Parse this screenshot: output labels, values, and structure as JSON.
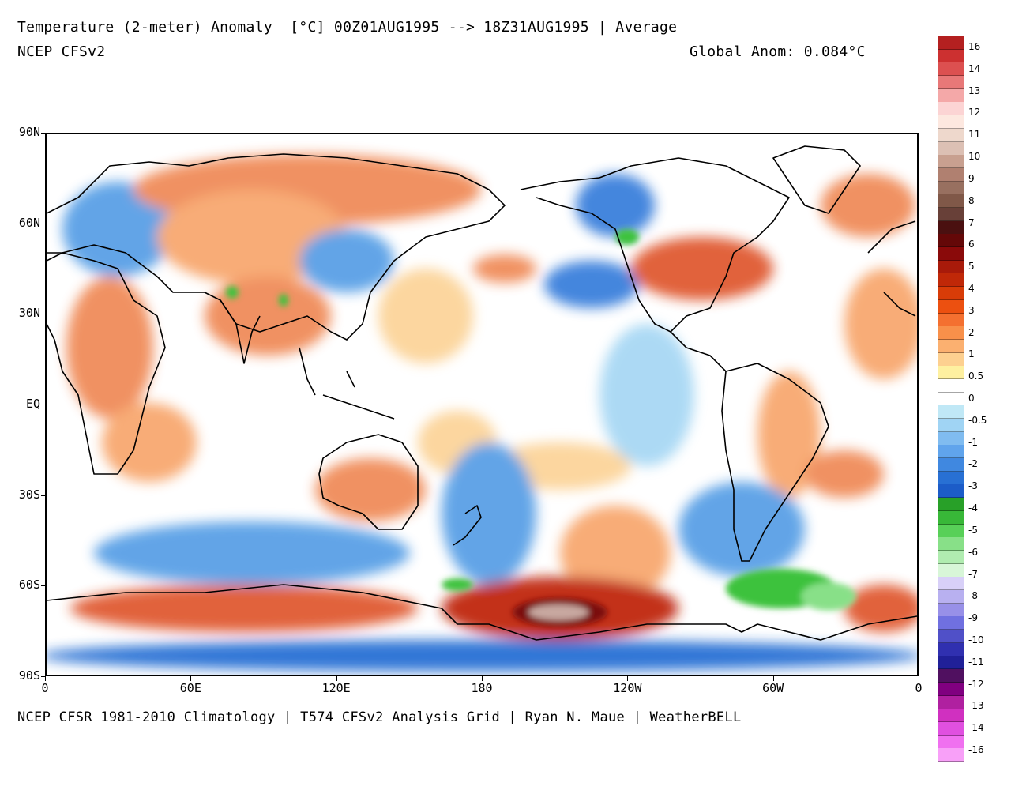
{
  "header": {
    "title": "Temperature (2-meter) Anomaly  [°C] 00Z01AUG1995 --> 18Z31AUG1995 | Average",
    "model": "NCEP CFSv2",
    "global_anom": "Global Anom: 0.084°C"
  },
  "footer": {
    "credits": "NCEP CFSR 1981-2010 Climatology | T574 CFSv2 Analysis Grid | Ryan N. Maue | WeatherBELL"
  },
  "map": {
    "lat_labels": [
      "90N",
      "60N",
      "30N",
      "EQ",
      "30S",
      "60S",
      "90S"
    ],
    "lon_labels": [
      "0",
      "60E",
      "120E",
      "180",
      "120W",
      "60W",
      "0"
    ],
    "projection": "cylindrical equidistant, 0-360 centered on 180",
    "colors": {
      "warm_strong": "#d8352a",
      "warm": "#f08c5a",
      "warm_light": "#fcd49a",
      "neutral": "#ffffff",
      "cool_light": "#b8e0f4",
      "cool": "#5aa0e6",
      "cool_strong": "#2060d0",
      "green": "#3cc23c",
      "very_warm": "#8a1010",
      "extreme_warm": "#c8a8a0"
    }
  },
  "legend": {
    "labels": [
      "16",
      "14",
      "13",
      "12",
      "11",
      "10",
      "9",
      "8",
      "7",
      "6",
      "5",
      "4",
      "3",
      "2",
      "1",
      "0.5",
      "0",
      "-0.5",
      "-1",
      "-2",
      "-3",
      "-4",
      "-5",
      "-6",
      "-7",
      "-8",
      "-9",
      "-10",
      "-11",
      "-12",
      "-13",
      "-14",
      "-16"
    ],
    "colors": [
      "#b42020",
      "#cc3030",
      "#dc5050",
      "#e87878",
      "#f4a8a8",
      "#fcd4d4",
      "#fde8e0",
      "#eed8cc",
      "#dcc0b4",
      "#c8a090",
      "#b08070",
      "#987060",
      "#805848",
      "#684038",
      "#4a1010",
      "#640808",
      "#8a0a0a",
      "#a81a0a",
      "#c02808",
      "#d83c08",
      "#ec5010",
      "#f47030",
      "#f8904a",
      "#fbb070",
      "#fdd090",
      "#fef0a0",
      "#ffffff",
      "#ffffff",
      "#c0e8f6",
      "#a0d4f4",
      "#80bcf0",
      "#60a4ec",
      "#4088e0",
      "#2870d4",
      "#1c5cc8",
      "#28a028",
      "#38b838",
      "#58d058",
      "#88e088",
      "#b0ecb0",
      "#d8f6d8",
      "#d8d0f8",
      "#b8b0f0",
      "#9890e8",
      "#7070e0",
      "#5050c8",
      "#3030b0",
      "#202098",
      "#501060",
      "#800080",
      "#b020a0",
      "#d030c0",
      "#e050e0",
      "#f070f0",
      "#f8a0f8"
    ]
  }
}
